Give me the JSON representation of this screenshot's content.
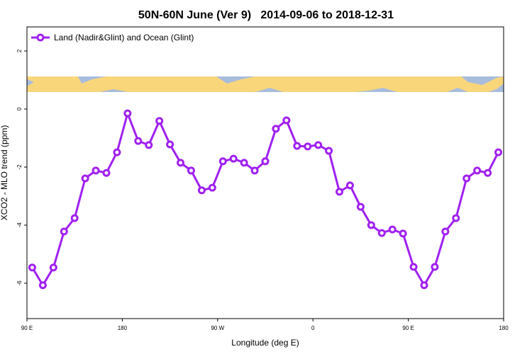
{
  "chart_data": {
    "type": "line",
    "title": "50N-60N June (Ver 9)   2014-09-06 to 2018-12-31",
    "x_label": "Longitude (deg E)",
    "y_label": "XCO2 - MLO trend (ppm)",
    "xlim": [
      -270,
      180
    ],
    "ylim": [
      -7.22,
      2.83
    ],
    "xticks": [
      {
        "value": -270,
        "label": "90 E"
      },
      {
        "value": -180,
        "label": "180"
      },
      {
        "value": -90,
        "label": "90 W"
      },
      0,
      {
        "value": 90,
        "label": "90 E"
      },
      180
    ],
    "yticks": [
      -6,
      -4,
      -2,
      0,
      2
    ],
    "grid": false,
    "legend": "top-left",
    "x": [
      -265,
      -255,
      -245,
      -235,
      -225,
      -215,
      -205,
      -195,
      -185,
      -175,
      -165,
      -155,
      -145,
      -135,
      -125,
      -115,
      -105,
      -95,
      -85,
      -75,
      -65,
      -55,
      -45,
      -35,
      -25,
      -15,
      -5,
      5,
      15,
      25,
      35,
      45,
      55,
      65,
      75,
      85,
      95,
      105,
      115,
      125,
      135,
      145,
      155,
      165,
      175
    ],
    "series": [
      {
        "name": "Land (Nadir&Glint) and Ocean (Glint)",
        "color": "#a020f0",
        "values": [
          -5.46,
          -6.07,
          -5.46,
          -4.22,
          -3.76,
          -2.39,
          -2.12,
          -2.2,
          -1.49,
          -0.15,
          -1.1,
          -1.24,
          -0.41,
          -1.22,
          -1.85,
          -2.12,
          -2.8,
          -2.71,
          -1.8,
          -1.71,
          -1.85,
          -2.12,
          -1.8,
          -0.68,
          -0.39,
          -1.27,
          -1.29,
          -1.24,
          -1.44,
          -2.85,
          -2.63,
          -3.37,
          -4.0,
          -4.27,
          -4.15,
          -4.29,
          -5.44,
          -6.07,
          -5.44,
          -4.22,
          -3.76,
          -2.39,
          -2.12,
          -2.2,
          -1.49
        ]
      }
    ]
  }
}
